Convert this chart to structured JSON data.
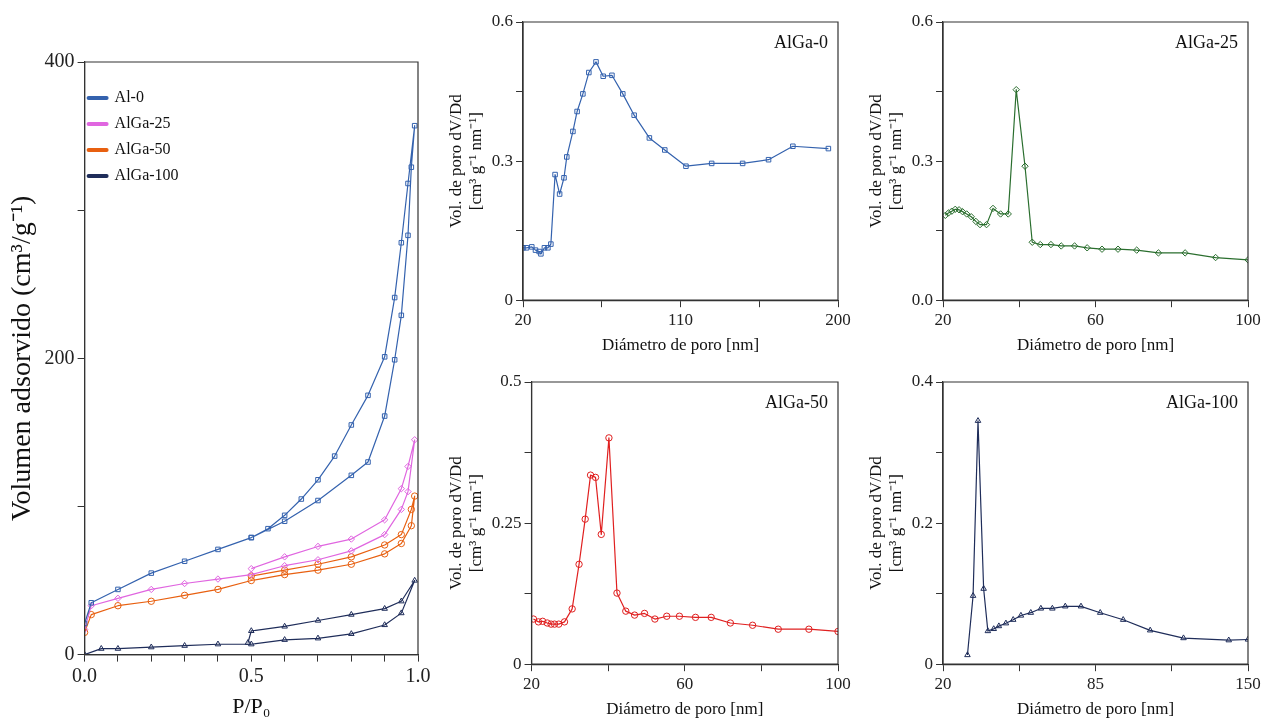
{
  "chart_data": [
    {
      "type": "line",
      "xlabel": "P/P₀",
      "ylabel": "Volumen adsorvido (cm³/g⁻¹)",
      "xlim": [
        0,
        1
      ],
      "ylim": [
        0,
        400
      ],
      "xticks": [
        {
          "value": 0,
          "label": "0.0"
        },
        {
          "value": 0.1,
          "label": null
        },
        {
          "value": 0.2,
          "label": null
        },
        {
          "value": 0.3,
          "label": null
        },
        {
          "value": 0.4,
          "label": null
        },
        0.5,
        {
          "value": 0.6,
          "label": null
        },
        {
          "value": 0.7,
          "label": null
        },
        {
          "value": 0.8,
          "label": null
        },
        {
          "value": 0.9,
          "label": null
        },
        {
          "value": 1,
          "label": "1.0"
        }
      ],
      "yticks": [
        0,
        {
          "value": 100,
          "label": null
        },
        200,
        {
          "value": 300,
          "label": null
        },
        400
      ],
      "grid": false,
      "legend": "top left",
      "line_style": "solid",
      "series": [
        {
          "name": "Al-0",
          "color": "#3462ae",
          "marker": "square",
          "x": [
            0,
            0.02,
            0.1,
            0.2,
            0.3,
            0.4,
            0.5,
            0.6,
            0.7,
            0.8,
            0.85,
            0.9,
            0.93,
            0.95,
            0.97,
            0.98,
            0.99,
            0.97,
            0.95,
            0.93,
            0.9,
            0.85,
            0.8,
            0.75,
            0.7,
            0.65,
            0.6,
            0.55,
            0.5
          ],
          "values": [
            21,
            35,
            44,
            55,
            63,
            71,
            79,
            90,
            104,
            121,
            130,
            161,
            199,
            229,
            283,
            329,
            357,
            318,
            278,
            241,
            201,
            175,
            155,
            134,
            118,
            105,
            94,
            85,
            79
          ]
        },
        {
          "name": "AlGa-25",
          "color": "#e066e0",
          "marker": "diamond",
          "x": [
            0,
            0.02,
            0.1,
            0.2,
            0.3,
            0.4,
            0.5,
            0.6,
            0.7,
            0.8,
            0.9,
            0.95,
            0.97,
            0.99,
            0.97,
            0.95,
            0.9,
            0.8,
            0.7,
            0.6,
            0.5
          ],
          "values": [
            17,
            33,
            38,
            44,
            48,
            51,
            54,
            60,
            64,
            70,
            81,
            98,
            110,
            145,
            127,
            112,
            91,
            78,
            73,
            66,
            58
          ]
        },
        {
          "name": "AlGa-50",
          "color": "#e86010",
          "marker": "circle",
          "x": [
            0,
            0.02,
            0.1,
            0.2,
            0.3,
            0.4,
            0.5,
            0.6,
            0.7,
            0.8,
            0.9,
            0.95,
            0.98,
            0.99,
            0.98,
            0.95,
            0.9,
            0.8,
            0.7,
            0.6,
            0.5
          ],
          "values": [
            15,
            27,
            33,
            36,
            40,
            44,
            50,
            54,
            57,
            61,
            68,
            75,
            87,
            107,
            98,
            81,
            74,
            66,
            61,
            57,
            53
          ]
        },
        {
          "name": "AlGa-100",
          "color": "#1f2d5a",
          "marker": "triangle",
          "x": [
            0,
            0.05,
            0.1,
            0.2,
            0.3,
            0.4,
            0.5,
            0.6,
            0.7,
            0.8,
            0.9,
            0.95,
            0.99,
            0.95,
            0.9,
            0.8,
            0.7,
            0.6,
            0.5,
            0.49
          ],
          "values": [
            0,
            4,
            4,
            5,
            6,
            7,
            7,
            10,
            11,
            14,
            20,
            28,
            50,
            36,
            31,
            27,
            23,
            19,
            16,
            8
          ]
        }
      ]
    },
    {
      "type": "line",
      "xlabel": "Diámetro de poro [nm]",
      "ylabel": "Vol. de poro dV/Dd [cm³ g⁻¹ nm⁻¹]",
      "annotations": [
        "AlGa-0"
      ],
      "xlim": [
        20,
        200
      ],
      "ylim": [
        0,
        0.6
      ],
      "xticks": [
        20,
        {
          "value": 65,
          "label": null
        },
        110,
        {
          "value": 155,
          "label": null
        },
        200
      ],
      "yticks": [
        0,
        {
          "value": 0.15,
          "label": null
        },
        0.3,
        {
          "value": 0.45,
          "label": null
        },
        0.6
      ],
      "grid": false,
      "line_style": "solid",
      "series": [
        {
          "color": "#3462ae",
          "marker": "square",
          "x": [
            20,
            22,
            25,
            27.1,
            29.2,
            30.2,
            32.2,
            34.2,
            35.9,
            38.3,
            40.9,
            43.4,
            45,
            48.5,
            50.9,
            54.2,
            57.6,
            61.7,
            65.8,
            70.8,
            77,
            83.5,
            92.2,
            101,
            113.1,
            127.8,
            145.5,
            160.3,
            174.2,
            194.5
          ],
          "values": [
            0.113,
            0.113,
            0.115,
            0.108,
            0.105,
            0.1,
            0.113,
            0.113,
            0.121,
            0.271,
            0.229,
            0.264,
            0.309,
            0.364,
            0.407,
            0.445,
            0.491,
            0.514,
            0.483,
            0.485,
            0.445,
            0.399,
            0.35,
            0.324,
            0.289,
            0.295,
            0.295,
            0.303,
            0.332,
            0.327
          ]
        }
      ]
    },
    {
      "type": "line",
      "xlabel": "Diámetro de poro [nm]",
      "ylabel": "Vol. de poro dV/Dd [cm³ g⁻¹ nm⁻¹]",
      "annotations": [
        "AlGa-25"
      ],
      "xlim": [
        20,
        100
      ],
      "ylim": [
        0,
        0.6
      ],
      "xticks": [
        20,
        {
          "value": 40,
          "label": null
        },
        60,
        {
          "value": 80,
          "label": null
        },
        100
      ],
      "yticks": [
        {
          "value": 0,
          "label": "0.0"
        },
        {
          "value": 0.15,
          "label": null
        },
        0.3,
        {
          "value": 0.45,
          "label": null
        },
        0.6
      ],
      "grid": false,
      "line_style": "solid",
      "series": [
        {
          "color": "#2a6e2e",
          "marker": "diamond",
          "x": [
            20.6,
            21.4,
            22.3,
            23.2,
            24.2,
            25.1,
            26.2,
            27.4,
            28.6,
            29.7,
            31.4,
            33.1,
            35.1,
            37.1,
            39.2,
            41.5,
            43.4,
            45.5,
            48.3,
            51,
            54.5,
            57.8,
            61.7,
            65.9,
            70.8,
            76.5,
            83.5,
            91.5,
            100
          ],
          "values": [
            0.183,
            0.188,
            0.192,
            0.196,
            0.195,
            0.191,
            0.186,
            0.18,
            0.17,
            0.163,
            0.163,
            0.198,
            0.186,
            0.186,
            0.454,
            0.289,
            0.125,
            0.12,
            0.12,
            0.117,
            0.117,
            0.113,
            0.11,
            0.11,
            0.108,
            0.102,
            0.102,
            0.092,
            0.087
          ]
        }
      ]
    },
    {
      "type": "line",
      "xlabel": "Diámetro de poro [nm]",
      "ylabel": "Vol. de poro dV/Dd [cm³ g⁻¹ nm⁻¹]",
      "annotations": [
        "AlGa-50"
      ],
      "xlim": [
        20,
        100
      ],
      "ylim": [
        0,
        0.5
      ],
      "xticks": [
        20,
        {
          "value": 40,
          "label": null
        },
        60,
        {
          "value": 80,
          "label": null
        },
        100
      ],
      "yticks": [
        0,
        {
          "value": 0.125,
          "label": null
        },
        0.25,
        {
          "value": 0.375,
          "label": null
        },
        0.5
      ],
      "grid": false,
      "line_style": "solid",
      "series": [
        {
          "color": "#e02020",
          "marker": "circle",
          "x": [
            20.5,
            21.8,
            22.9,
            24.1,
            25.1,
            26,
            27.1,
            28.6,
            30.6,
            32.4,
            34,
            35.4,
            36.7,
            38.2,
            40.2,
            42.3,
            44.6,
            46.9,
            49.5,
            52.2,
            55.3,
            58.6,
            62.8,
            66.9,
            71.9,
            77.7,
            84.4,
            92.4,
            100
          ],
          "values": [
            0.08,
            0.075,
            0.076,
            0.073,
            0.071,
            0.071,
            0.071,
            0.075,
            0.098,
            0.177,
            0.257,
            0.335,
            0.331,
            0.23,
            0.401,
            0.126,
            0.094,
            0.087,
            0.09,
            0.08,
            0.085,
            0.085,
            0.083,
            0.083,
            0.073,
            0.069,
            0.062,
            0.062,
            0.058
          ]
        }
      ]
    },
    {
      "type": "line",
      "xlabel": "Diámetro de poro [nm]",
      "ylabel": "Vol. de poro dV/Dd [cm³ g⁻¹ nm⁻¹]",
      "annotations": [
        "AlGa-100"
      ],
      "xlim": [
        20,
        150
      ],
      "ylim": [
        0,
        0.4
      ],
      "xticks": [
        20,
        {
          "value": 52.5,
          "label": null
        },
        85,
        {
          "value": 117.5,
          "label": null
        },
        150
      ],
      "yticks": [
        0,
        {
          "value": 0.1,
          "label": null
        },
        0.2,
        {
          "value": 0.3,
          "label": null
        },
        0.4
      ],
      "grid": false,
      "line_style": "solid",
      "series": [
        {
          "color": "#1f2d5a",
          "marker": "triangle",
          "x": [
            30.4,
            32.8,
            34.9,
            37.3,
            39.1,
            41.6,
            43.8,
            46.8,
            49.9,
            53.2,
            57.4,
            61.7,
            66.6,
            72.1,
            78.8,
            87,
            96.8,
            108.3,
            122.5,
            141.8,
            150
          ],
          "values": [
            0.013,
            0.097,
            0.345,
            0.107,
            0.047,
            0.05,
            0.054,
            0.058,
            0.063,
            0.069,
            0.073,
            0.079,
            0.079,
            0.082,
            0.082,
            0.073,
            0.063,
            0.048,
            0.037,
            0.034,
            0.035
          ]
        }
      ]
    }
  ]
}
